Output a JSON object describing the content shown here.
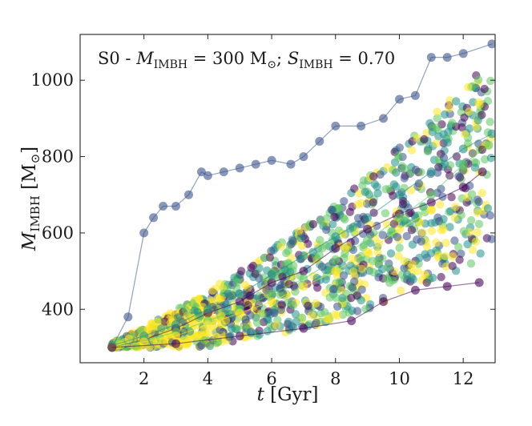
{
  "chart_data": {
    "type": "scatter",
    "title": "S0 - M_IMBH = 300 M_⊙; S_IMBH = 0.70",
    "title_parts": {
      "prefix": "S0 - ",
      "m_sym": "M",
      "m_sub": "IMBH",
      "m_eq": " = 300 M",
      "sun": "⊙",
      "s_sep": "; ",
      "s_sym": "S",
      "s_sub": "IMBH",
      "s_eq": " = 0.70"
    },
    "xlabel": "t [Gyr]",
    "xlabel_parts": {
      "sym": "t",
      "unit": " [Gyr]"
    },
    "ylabel": "M_IMBH [M_⊙]",
    "ylabel_parts": {
      "sym": "M",
      "sub": "IMBH",
      "open": " [M",
      "sun": "⊙",
      "close": "]"
    },
    "xlim": [
      0.0,
      13.0
    ],
    "ylim": [
      260,
      1120
    ],
    "xticks": [
      2,
      4,
      6,
      8,
      10,
      12
    ],
    "yticks": [
      400,
      600,
      800,
      1000
    ],
    "xtick_labels": [
      "2",
      "4",
      "6",
      "8",
      "10",
      "12"
    ],
    "ytick_labels": [
      "400",
      "600",
      "800",
      "1000"
    ],
    "colormap": "viridis",
    "colors": [
      "#440154",
      "#3b528b",
      "#21918c",
      "#5ec962",
      "#fde725"
    ],
    "series": [
      {
        "name": "track-dark-blue-upper",
        "color": "#3b528b",
        "x": [
          1.0,
          1.5,
          2.0,
          2.3,
          2.6,
          3.0,
          3.4,
          3.8,
          4.0,
          4.5,
          5.0,
          5.5,
          6.0,
          6.6,
          7.0,
          7.5,
          8.0,
          8.8,
          9.5,
          10.0,
          10.5,
          11.0,
          11.5,
          12.0,
          12.9
        ],
        "y": [
          300,
          380,
          600,
          640,
          670,
          670,
          700,
          760,
          750,
          760,
          770,
          780,
          790,
          780,
          800,
          840,
          880,
          880,
          900,
          950,
          960,
          1060,
          1060,
          1070,
          1095
        ]
      },
      {
        "name": "track-purple",
        "color": "#440154",
        "x": [
          1.0,
          2.0,
          3.0,
          4.0,
          5.0,
          6.0,
          7.0,
          8.0,
          9.0,
          10.0,
          11.0,
          12.0,
          12.6
        ],
        "y": [
          300,
          320,
          350,
          390,
          420,
          470,
          500,
          560,
          610,
          650,
          680,
          720,
          760
        ]
      },
      {
        "name": "track-teal",
        "color": "#21918c",
        "x": [
          1.0,
          2.0,
          3.0,
          4.0,
          5.0,
          6.0,
          7.0,
          8.0,
          9.0,
          10.0,
          11.0,
          12.0,
          12.9
        ],
        "y": [
          305,
          330,
          360,
          400,
          440,
          490,
          540,
          590,
          640,
          700,
          760,
          820,
          860
        ]
      },
      {
        "name": "track-green",
        "color": "#5ec962",
        "x": [
          1.0,
          2.0,
          3.0,
          4.0,
          5.0,
          6.0,
          7.0,
          8.0,
          9.0,
          10.0,
          11.0,
          12.0,
          12.8
        ],
        "y": [
          300,
          320,
          340,
          370,
          400,
          440,
          480,
          530,
          580,
          640,
          700,
          780,
          830
        ]
      },
      {
        "name": "track-yellow",
        "color": "#fde725",
        "x": [
          1.0,
          2.0,
          3.0,
          4.0,
          5.0,
          6.0,
          7.0,
          8.0,
          9.0,
          10.0,
          11.0
        ],
        "y": [
          300,
          315,
          330,
          360,
          390,
          420,
          460,
          500,
          550,
          610,
          660
        ]
      },
      {
        "name": "track-low-purple",
        "color": "#440154",
        "x": [
          1.0,
          3.0,
          5.0,
          7.0,
          8.5,
          9.5,
          10.5,
          11.5,
          12.5
        ],
        "y": [
          300,
          310,
          330,
          350,
          370,
          420,
          450,
          460,
          470
        ]
      }
    ]
  }
}
